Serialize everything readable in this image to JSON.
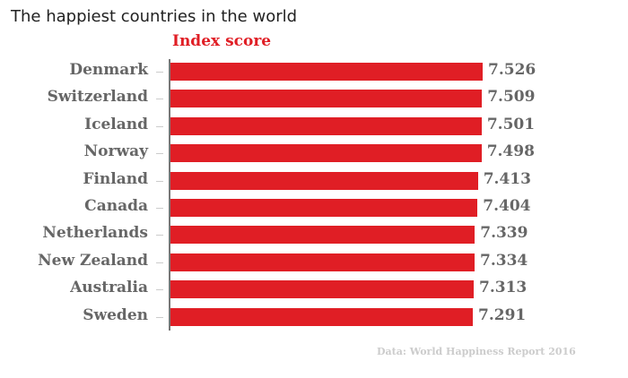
{
  "header": {
    "title": "The happiest countries in the world",
    "subtitle": "Index score"
  },
  "footer": {
    "source": "Data: World Happiness Report 2016"
  },
  "colors": {
    "bar": "#e01e25",
    "label": "#666666",
    "source": "#cccccc"
  },
  "chart_data": {
    "type": "bar",
    "orientation": "horizontal",
    "title": "The happiest countries in the world",
    "subtitle": "Index score",
    "xlabel": "",
    "ylabel": "",
    "categories": [
      "Denmark",
      "Switzerland",
      "Iceland",
      "Norway",
      "Finland",
      "Canada",
      "Netherlands",
      "New Zealand",
      "Australia",
      "Sweden"
    ],
    "values": [
      7.526,
      7.509,
      7.501,
      7.498,
      7.413,
      7.404,
      7.339,
      7.334,
      7.313,
      7.291
    ],
    "value_labels": [
      "7.526",
      "7.509",
      "7.501",
      "7.498",
      "7.413",
      "7.404",
      "7.339",
      "7.334",
      "7.313",
      "7.291"
    ],
    "grid": false,
    "legend": null,
    "annotation": "Data: World Happiness Report 2016"
  }
}
